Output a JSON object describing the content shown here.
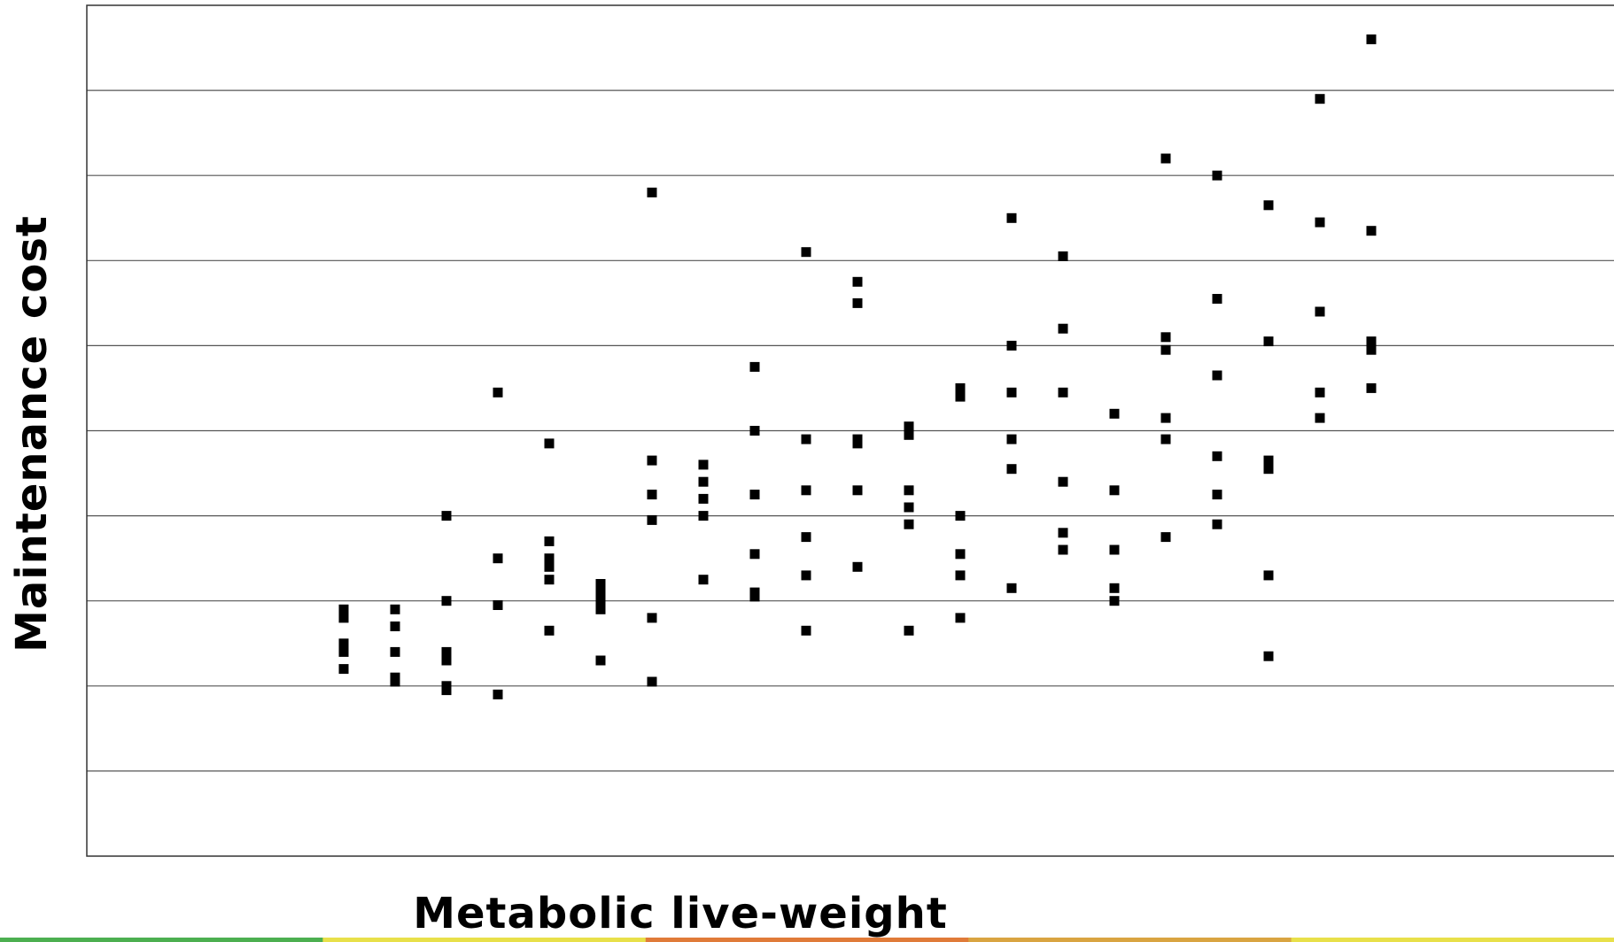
{
  "chart_data": {
    "type": "scatter",
    "title": "",
    "xlabel": "Metabolic live-weight",
    "ylabel": "Maintenance cost",
    "xlim": [
      0,
      30
    ],
    "ylim": [
      0,
      10
    ],
    "grid": "horizontal",
    "show_tick_labels": false,
    "marker": "square",
    "colors": {
      "marker": "#000000",
      "gridline": "#555555",
      "frame": "#333333",
      "footer_band": [
        "#4caf50",
        "#e8e04a",
        "#e07b39",
        "#d9a441",
        "#e8e04a"
      ]
    },
    "series": [
      {
        "points": [
          [
            5,
            2.9
          ],
          [
            5,
            2.8
          ],
          [
            5,
            2.5
          ],
          [
            5,
            2.4
          ],
          [
            5,
            2.2
          ],
          [
            6,
            2.9
          ],
          [
            6,
            2.7
          ],
          [
            6,
            2.4
          ],
          [
            6,
            2.1
          ],
          [
            6,
            2.05
          ],
          [
            7,
            4.0
          ],
          [
            7,
            3.0
          ],
          [
            7,
            2.4
          ],
          [
            7,
            2.3
          ],
          [
            7,
            2.0
          ],
          [
            7,
            1.95
          ],
          [
            8,
            5.45
          ],
          [
            8,
            3.5
          ],
          [
            8,
            2.95
          ],
          [
            8,
            1.9
          ],
          [
            9,
            4.85
          ],
          [
            9,
            3.7
          ],
          [
            9,
            3.5
          ],
          [
            9,
            3.4
          ],
          [
            9,
            3.25
          ],
          [
            9,
            2.65
          ],
          [
            10,
            3.2
          ],
          [
            10,
            3.1
          ],
          [
            10,
            3.0
          ],
          [
            10,
            2.9
          ],
          [
            10,
            2.3
          ],
          [
            11,
            7.8
          ],
          [
            11,
            4.65
          ],
          [
            11,
            4.25
          ],
          [
            11,
            3.95
          ],
          [
            11,
            2.8
          ],
          [
            11,
            2.05
          ],
          [
            12,
            4.6
          ],
          [
            12,
            4.4
          ],
          [
            12,
            4.2
          ],
          [
            12,
            4.0
          ],
          [
            12,
            3.25
          ],
          [
            13,
            5.75
          ],
          [
            13,
            5.0
          ],
          [
            13,
            4.25
          ],
          [
            13,
            3.55
          ],
          [
            13,
            3.1
          ],
          [
            13,
            3.05
          ],
          [
            14,
            7.1
          ],
          [
            14,
            4.9
          ],
          [
            14,
            4.3
          ],
          [
            14,
            3.75
          ],
          [
            14,
            3.3
          ],
          [
            14,
            2.65
          ],
          [
            15,
            6.75
          ],
          [
            15,
            6.5
          ],
          [
            15,
            4.9
          ],
          [
            15,
            4.85
          ],
          [
            15,
            4.3
          ],
          [
            15,
            3.4
          ],
          [
            16,
            5.05
          ],
          [
            16,
            4.95
          ],
          [
            16,
            4.3
          ],
          [
            16,
            4.1
          ],
          [
            16,
            3.9
          ],
          [
            16,
            2.65
          ],
          [
            17,
            5.5
          ],
          [
            17,
            5.4
          ],
          [
            17,
            4.0
          ],
          [
            17,
            3.55
          ],
          [
            17,
            3.3
          ],
          [
            17,
            2.8
          ],
          [
            18,
            7.5
          ],
          [
            18,
            6.0
          ],
          [
            18,
            5.45
          ],
          [
            18,
            4.9
          ],
          [
            18,
            4.55
          ],
          [
            18,
            3.15
          ],
          [
            19,
            7.05
          ],
          [
            19,
            6.2
          ],
          [
            19,
            5.45
          ],
          [
            19,
            4.4
          ],
          [
            19,
            3.8
          ],
          [
            19,
            3.6
          ],
          [
            20,
            5.2
          ],
          [
            20,
            4.3
          ],
          [
            20,
            3.6
          ],
          [
            20,
            3.15
          ],
          [
            20,
            3.0
          ],
          [
            21,
            8.2
          ],
          [
            21,
            6.1
          ],
          [
            21,
            5.95
          ],
          [
            21,
            5.15
          ],
          [
            21,
            4.9
          ],
          [
            21,
            3.75
          ],
          [
            22,
            8.0
          ],
          [
            22,
            6.55
          ],
          [
            22,
            5.65
          ],
          [
            22,
            4.7
          ],
          [
            22,
            4.25
          ],
          [
            22,
            3.9
          ],
          [
            23,
            7.65
          ],
          [
            23,
            6.05
          ],
          [
            23,
            4.65
          ],
          [
            23,
            4.55
          ],
          [
            23,
            3.3
          ],
          [
            23,
            2.35
          ],
          [
            24,
            8.9
          ],
          [
            24,
            7.45
          ],
          [
            24,
            6.4
          ],
          [
            24,
            5.45
          ],
          [
            24,
            5.15
          ],
          [
            25,
            9.6
          ],
          [
            25,
            7.35
          ],
          [
            25,
            6.05
          ],
          [
            25,
            5.95
          ],
          [
            25,
            5.5
          ]
        ]
      }
    ]
  }
}
